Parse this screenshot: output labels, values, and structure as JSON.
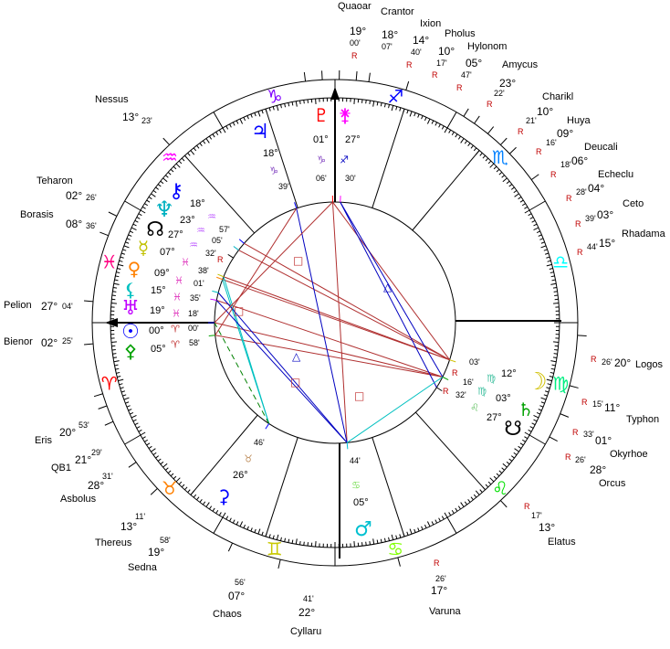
{
  "colors": {
    "red": "#ff0000",
    "blue": "#0000ff",
    "trine": "#0000c0",
    "square": "#b03030",
    "green": "#008000"
  },
  "signs": [
    {
      "name": "aries",
      "glyph": "♈",
      "color": "#ff0000"
    },
    {
      "name": "taurus",
      "glyph": "♉",
      "color": "#ff8000"
    },
    {
      "name": "gemini",
      "glyph": "♊",
      "color": "#c8c800"
    },
    {
      "name": "cancer",
      "glyph": "♋",
      "color": "#80ff00"
    },
    {
      "name": "leo",
      "glyph": "♌",
      "color": "#00e000"
    },
    {
      "name": "virgo",
      "glyph": "♍",
      "color": "#00ee80"
    },
    {
      "name": "libra",
      "glyph": "♎",
      "color": "#00ffff"
    },
    {
      "name": "scorpio",
      "glyph": "♏",
      "color": "#0080ff"
    },
    {
      "name": "sagittarius",
      "glyph": "♐",
      "color": "#0000ff"
    },
    {
      "name": "capricorn",
      "glyph": "♑",
      "color": "#8000ff"
    },
    {
      "name": "aquarius",
      "glyph": "♒",
      "color": "#ff00ff"
    },
    {
      "name": "pisces",
      "glyph": "♓",
      "color": "#ff0080"
    }
  ],
  "angles": {
    "ascendant": "aries 0",
    "midheaven": "capricorn"
  },
  "planets": [
    {
      "name": "chiron",
      "glyph": "⚷",
      "color": "#0000ff",
      "deg": "18°",
      "sign": "♒",
      "sign_color": "#c060ff",
      "min": "57'",
      "lon": 318.95
    },
    {
      "name": "neptune",
      "glyph": "♆",
      "color": "#00b0c0",
      "deg": "23°",
      "sign": "♒",
      "sign_color": "#c060ff",
      "min": "05'",
      "lon": 323.08
    },
    {
      "name": "north-node",
      "glyph": "☊",
      "color": "#000000",
      "deg": "27°",
      "sign": "♒",
      "sign_color": "#c060ff",
      "min": "32'",
      "retro": "R",
      "lon": 327.53
    },
    {
      "name": "mercury",
      "glyph": "☿",
      "color": "#c0c000",
      "deg": "07°",
      "sign": "♓",
      "sign_color": "#e040c0",
      "min": "38'",
      "lon": 337.63
    },
    {
      "name": "venus",
      "glyph": "♀",
      "color": "#ff8000",
      "deg": "09°",
      "sign": "♓",
      "sign_color": "#e040c0",
      "min": "01'",
      "lon": 339.02
    },
    {
      "name": "lilith",
      "glyph": "⚸",
      "color": "#00c0c0",
      "deg": "15°",
      "sign": "♓",
      "sign_color": "#e040c0",
      "min": "35'",
      "lon": 345.58
    },
    {
      "name": "uranus",
      "glyph": "♅",
      "color": "#c000ff",
      "deg": "19°",
      "sign": "♓",
      "sign_color": "#e040c0",
      "min": "18'",
      "lon": 349.3
    },
    {
      "name": "sun",
      "glyph": "☉",
      "color": "#0000ff",
      "deg": "00°",
      "sign": "♈",
      "sign_color": "#c03030",
      "min": "00'",
      "lon": 0
    },
    {
      "name": "pallas",
      "glyph": "⚴",
      "color": "#00a000",
      "deg": "05°",
      "sign": "♈",
      "sign_color": "#c03030",
      "min": "58'",
      "lon": 5.97
    },
    {
      "name": "jupiter",
      "glyph": "♃",
      "color": "#0000ff",
      "deg": "18°",
      "sign": "♑",
      "sign_color": "#8040c0",
      "min": "39'",
      "lon": 288.65
    },
    {
      "name": "pluto",
      "glyph": "♇",
      "color": "#ff0000",
      "deg": "01°",
      "sign": "♑",
      "sign_color": "#8040c0",
      "min": "06'",
      "lon": 271.1
    },
    {
      "name": "juno",
      "glyph": "⚵",
      "color": "#ff00ff",
      "deg": "27°",
      "sign": "♐",
      "sign_color": "#0000c0",
      "min": "30'",
      "lon": 267.5
    },
    {
      "name": "moon",
      "glyph": "☽",
      "color": "#d0c000",
      "deg": "12°",
      "sign": "♍",
      "sign_color": "#40c0a0",
      "min": "03'",
      "lon": 162.05
    },
    {
      "name": "saturn",
      "glyph": "♄",
      "color": "#00a000",
      "deg": "03°",
      "sign": "♍",
      "sign_color": "#40c0a0",
      "min": "16'",
      "retro": "R",
      "lon": 153.27
    },
    {
      "name": "south-node",
      "glyph": "☋",
      "color": "#000000",
      "deg": "27°",
      "sign": "♌",
      "sign_color": "#60c060",
      "min": "32'",
      "retro": "R",
      "lon": 147.53
    },
    {
      "name": "mars",
      "glyph": "♂",
      "color": "#00c0d0",
      "deg": "05°",
      "sign": "♋",
      "sign_color": "#80e060",
      "min": "44'",
      "lon": 95.73
    },
    {
      "name": "ceres",
      "glyph": "⚳",
      "color": "#0000ff",
      "deg": "26°",
      "sign": "♉",
      "sign_color": "#c09060",
      "min": "46'",
      "lon": 56.77
    }
  ],
  "outer_bodies": [
    {
      "name": "Quaoar",
      "deg": "19°",
      "min": "00'",
      "retro": "R"
    },
    {
      "name": "Crantor",
      "deg": "18°",
      "min": "07'",
      "retro": ""
    },
    {
      "name": "Ixion",
      "deg": "14°",
      "min": "40'",
      "retro": "R"
    },
    {
      "name": "Pholus",
      "deg": "10°",
      "min": "17'",
      "retro": "R"
    },
    {
      "name": "Hylonom",
      "deg": "05°",
      "min": "47'",
      "retro": "R"
    },
    {
      "name": "Amycus",
      "deg": "23°",
      "min": "22'",
      "retro": "R"
    },
    {
      "name": "Charikl",
      "deg": "10°",
      "min": "21'",
      "retro": "R"
    },
    {
      "name": "Huya",
      "deg": "09°",
      "min": "16'",
      "retro": "R"
    },
    {
      "name": "Deucali",
      "deg": "06°",
      "min": "18'",
      "retro": "R"
    },
    {
      "name": "Echeclu",
      "deg": "04°",
      "min": "28'",
      "retro": "R"
    },
    {
      "name": "Ceto",
      "deg": "03°",
      "min": "39'",
      "retro": "R"
    },
    {
      "name": "Rhadama",
      "deg": "15°",
      "min": "44'",
      "retro": "R"
    },
    {
      "name": "Logos",
      "deg": "20°",
      "min": "26'",
      "retro": "R"
    },
    {
      "name": "Typhon",
      "deg": "11°",
      "min": "15'",
      "retro": "R"
    },
    {
      "name": "Okyrhoe",
      "deg": "01°",
      "min": "33'",
      "retro": "R"
    },
    {
      "name": "Orcus",
      "deg": "28°",
      "min": "26'",
      "retro": "R"
    },
    {
      "name": "Elatus",
      "deg": "13°",
      "min": "17'",
      "retro": "R"
    },
    {
      "name": "Varuna",
      "deg": "17°",
      "min": "26'",
      "retro": "R"
    },
    {
      "name": "Cyllaru",
      "deg": "22°",
      "min": "41'",
      "retro": ""
    },
    {
      "name": "Chaos",
      "deg": "07°",
      "min": "56'",
      "retro": ""
    },
    {
      "name": "Sedna",
      "deg": "19°",
      "min": "58'",
      "retro": ""
    },
    {
      "name": "Thereus",
      "deg": "13°",
      "min": "11'",
      "retro": ""
    },
    {
      "name": "Asbolus",
      "deg": "28°",
      "min": "31'",
      "retro": ""
    },
    {
      "name": "QB1",
      "deg": "21°",
      "min": "29'",
      "retro": ""
    },
    {
      "name": "Eris",
      "deg": "20°",
      "min": "53'",
      "retro": ""
    },
    {
      "name": "Bienor",
      "deg": "02°",
      "min": "25'",
      "retro": ""
    },
    {
      "name": "Pelion",
      "deg": "27°",
      "min": "04'",
      "retro": ""
    },
    {
      "name": "Borasis",
      "deg": "08°",
      "min": "36'",
      "retro": ""
    },
    {
      "name": "Teharon",
      "deg": "02°",
      "min": "26'",
      "retro": ""
    },
    {
      "name": "Nessus",
      "deg": "13°",
      "min": "23'",
      "retro": ""
    }
  ],
  "aspects": [
    {
      "from": "moon",
      "to": "chiron",
      "type": "square"
    },
    {
      "from": "moon",
      "to": "neptune",
      "type": "square"
    },
    {
      "from": "moon",
      "to": "mercury",
      "type": "square"
    },
    {
      "from": "moon",
      "to": "venus",
      "type": "square"
    },
    {
      "from": "saturn",
      "to": "sun",
      "type": "square"
    },
    {
      "from": "saturn",
      "to": "uranus",
      "type": "square"
    },
    {
      "from": "saturn",
      "to": "pallas",
      "type": "square"
    },
    {
      "from": "pluto",
      "to": "moon",
      "type": "square"
    },
    {
      "from": "pluto",
      "to": "mars",
      "type": "square"
    },
    {
      "from": "juno",
      "to": "saturn",
      "type": "trine"
    },
    {
      "from": "juno",
      "to": "south-node",
      "type": "trine"
    },
    {
      "from": "jupiter",
      "to": "mars",
      "type": "trine"
    },
    {
      "from": "ceres",
      "to": "mercury",
      "type": "sextile"
    },
    {
      "from": "ceres",
      "to": "venus",
      "type": "sextile"
    },
    {
      "from": "mars",
      "to": "lilith",
      "type": "trine"
    },
    {
      "from": "mars",
      "to": "uranus",
      "type": "trine"
    },
    {
      "from": "mars",
      "to": "saturn",
      "type": "sextile"
    },
    {
      "from": "ceres",
      "to": "sun",
      "type": "semi"
    },
    {
      "from": "jupiter",
      "to": "pallas",
      "type": "square"
    },
    {
      "from": "pluto",
      "to": "sun",
      "type": "square"
    }
  ]
}
